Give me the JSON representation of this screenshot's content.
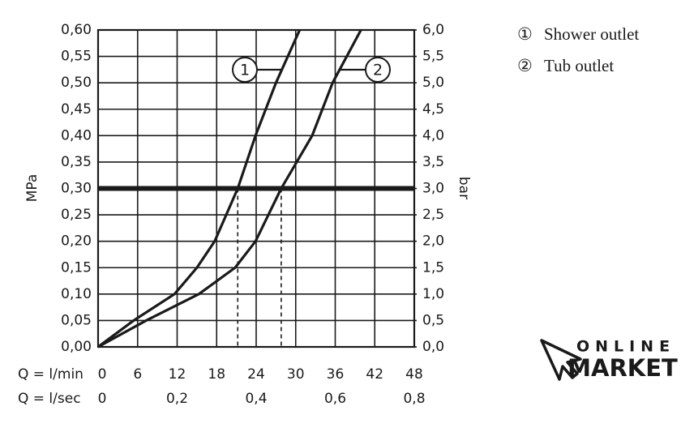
{
  "chart_data": {
    "type": "line",
    "xlabel": "Q = l/min",
    "x2label": "Q = l/sec",
    "ylabel": "MPa",
    "y2label": "bar",
    "xlim": [
      0,
      48
    ],
    "xticks": [
      0,
      6,
      12,
      18,
      24,
      30,
      36,
      42,
      48
    ],
    "x2lim": [
      0,
      0.8
    ],
    "x2ticks": [
      0,
      {
        "value": 0.2,
        "label": "0,2"
      },
      {
        "value": 0.4,
        "label": "0,4"
      },
      {
        "value": 0.6,
        "label": "0,6"
      },
      {
        "value": 0.8,
        "label": "0,8"
      }
    ],
    "ylim": [
      0,
      0.6
    ],
    "yticks": [
      {
        "value": 0,
        "label": "0,00"
      },
      {
        "value": 0.05,
        "label": "0,05"
      },
      {
        "value": 0.1,
        "label": "0,10"
      },
      {
        "value": 0.15,
        "label": "0,15"
      },
      {
        "value": 0.2,
        "label": "0,20"
      },
      {
        "value": 0.25,
        "label": "0,25"
      },
      {
        "value": 0.3,
        "label": "0,30"
      },
      {
        "value": 0.35,
        "label": "0,35"
      },
      {
        "value": 0.4,
        "label": "0,40"
      },
      {
        "value": 0.45,
        "label": "0,45"
      },
      {
        "value": 0.5,
        "label": "0,50"
      },
      {
        "value": 0.55,
        "label": "0,55"
      },
      {
        "value": 0.6,
        "label": "0,60"
      }
    ],
    "y2lim": [
      0,
      6
    ],
    "y2ticks": [
      {
        "value": 0,
        "label": "0,0"
      },
      {
        "value": 0.5,
        "label": "0,5"
      },
      {
        "value": 1,
        "label": "1,0"
      },
      {
        "value": 1.5,
        "label": "1,5"
      },
      {
        "value": 2,
        "label": "2,0"
      },
      {
        "value": 2.5,
        "label": "2,5"
      },
      {
        "value": 3,
        "label": "3,0"
      },
      {
        "value": 3.5,
        "label": "3,5"
      },
      {
        "value": 4,
        "label": "4,0"
      },
      {
        "value": 4.5,
        "label": "4,5"
      },
      {
        "value": 5,
        "label": "5,0"
      },
      {
        "value": 5.5,
        "label": "5,5"
      },
      {
        "value": 6,
        "label": "6,0"
      }
    ],
    "grid": true,
    "reference_y": 0.3,
    "series": [
      {
        "name": "Shower outlet",
        "symbol": "①",
        "label": "1",
        "color": "#1a1a1a",
        "x": [
          0,
          5.4,
          11.6,
          15,
          17.7,
          21.2,
          23.9,
          27,
          30.6
        ],
        "values": [
          0,
          0.05,
          0.1,
          0.15,
          0.2,
          0.3,
          0.4,
          0.5,
          0.6
        ],
        "crossing_x": 21.2
      },
      {
        "name": "Tub outlet",
        "symbol": "②",
        "label": "2",
        "color": "#1a1a1a",
        "x": [
          0,
          7.3,
          15.3,
          20.8,
          23.9,
          27.8,
          32.5,
          35.6,
          39.9
        ],
        "values": [
          0,
          0.05,
          0.1,
          0.15,
          0.2,
          0.3,
          0.4,
          0.5,
          0.6
        ],
        "crossing_x": 27.8
      }
    ]
  },
  "logo": {
    "line1": "ONLINE",
    "line2": "MARKET"
  }
}
